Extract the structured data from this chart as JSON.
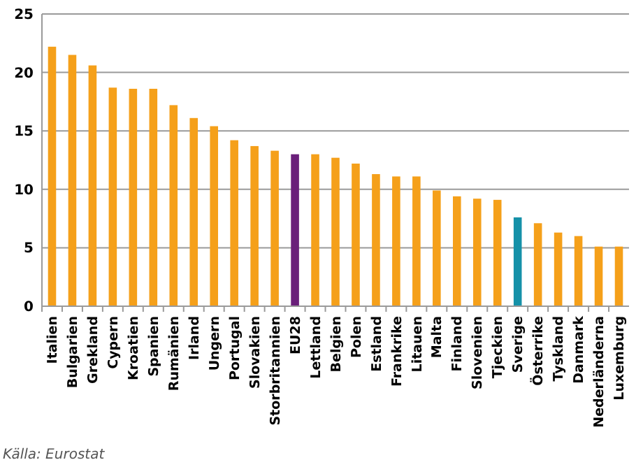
{
  "chart_data": {
    "type": "bar",
    "categories": [
      "Italien",
      "Bulgarien",
      "Grekland",
      "Cypern",
      "Kroatien",
      "Spanien",
      "Rumänien",
      "Irland",
      "Ungern",
      "Portugal",
      "Slovakien",
      "Storbritannien",
      "EU28",
      "Lettland",
      "Belgien",
      "Polen",
      "Estland",
      "Frankrike",
      "Litauen",
      "Malta",
      "Finland",
      "Slovenien",
      "Tjeckien",
      "Sverige",
      "Österrike",
      "Tyskland",
      "Danmark",
      "Nederländerna",
      "Luxemburg"
    ],
    "values": [
      22.2,
      21.5,
      20.6,
      18.7,
      18.6,
      18.6,
      17.2,
      16.1,
      15.4,
      14.2,
      13.7,
      13.3,
      13.0,
      13.0,
      12.7,
      12.2,
      11.3,
      11.1,
      11.1,
      9.9,
      9.4,
      9.2,
      9.1,
      7.6,
      7.1,
      6.3,
      6.0,
      5.1,
      5.1
    ],
    "colors": [
      "#f5a01a",
      "#f5a01a",
      "#f5a01a",
      "#f5a01a",
      "#f5a01a",
      "#f5a01a",
      "#f5a01a",
      "#f5a01a",
      "#f5a01a",
      "#f5a01a",
      "#f5a01a",
      "#f5a01a",
      "#6a1f7a",
      "#f5a01a",
      "#f5a01a",
      "#f5a01a",
      "#f5a01a",
      "#f5a01a",
      "#f5a01a",
      "#f5a01a",
      "#f5a01a",
      "#f5a01a",
      "#f5a01a",
      "#1591a8",
      "#f5a01a",
      "#f5a01a",
      "#f5a01a",
      "#f5a01a",
      "#f5a01a"
    ],
    "ylim": [
      0,
      25
    ],
    "yticks": [
      0,
      5,
      10,
      15,
      20,
      25
    ],
    "grid": "y",
    "annotations": [
      "Källa: Eurostat"
    ]
  }
}
